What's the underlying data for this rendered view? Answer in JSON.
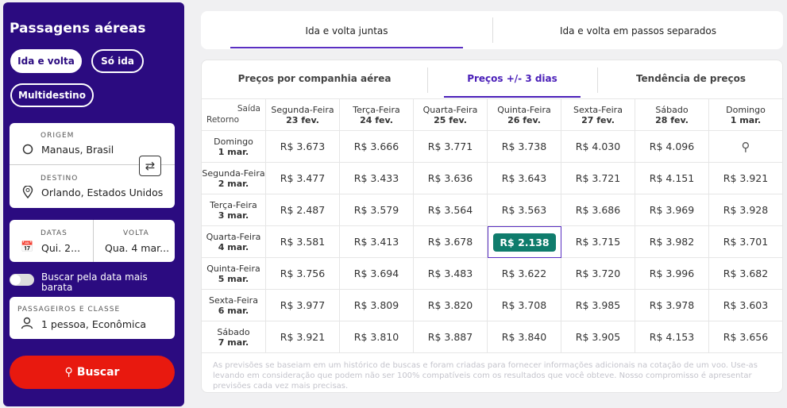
{
  "sidebar": {
    "title": "Passagens aéreas",
    "trip_types": [
      "Ida e volta",
      "Só ida",
      "Multidestino"
    ],
    "origin_label": "ORIGEM",
    "origin": "Manaus, Brasil",
    "destination_label": "DESTINO",
    "destination": "Orlando, Estados Unidos",
    "dates_label": "DATAS",
    "dates": "Qui. 2...",
    "return_label": "VOLTA",
    "return": "Qua. 4 mar...",
    "cheapest_toggle": "Buscar pela data mais barata",
    "passengers_label": "PASSAGEIROS E CLASSE",
    "passengers": "1 pessoa, Econômica",
    "search_button": "Buscar"
  },
  "top_tabs": [
    "Ida e volta juntas",
    "Ida e volta em passos separados"
  ],
  "sub_tabs": [
    "Preços por companhia aérea",
    "Preços +/- 3 dias",
    "Tendência de preços"
  ],
  "table": {
    "corner_top": "Saída",
    "corner_bottom": "Retorno",
    "columns": [
      {
        "day": "Segunda-Feira",
        "date": "23 fev."
      },
      {
        "day": "Terça-Feira",
        "date": "24 fev."
      },
      {
        "day": "Quarta-Feira",
        "date": "25 fev."
      },
      {
        "day": "Quinta-Feira",
        "date": "26 fev."
      },
      {
        "day": "Sexta-Feira",
        "date": "27 fev."
      },
      {
        "day": "Sábado",
        "date": "28 fev."
      },
      {
        "day": "Domingo",
        "date": "1 mar."
      }
    ],
    "rows": [
      {
        "day": "Domingo",
        "date": "1 mar.",
        "prices": [
          "R$ 3.673",
          "R$ 3.666",
          "R$ 3.771",
          "R$ 3.738",
          "R$ 4.030",
          "R$ 4.096",
          null
        ]
      },
      {
        "day": "Segunda-Feira",
        "date": "2 mar.",
        "prices": [
          "R$ 3.477",
          "R$ 3.433",
          "R$ 3.636",
          "R$ 3.643",
          "R$ 3.721",
          "R$ 4.151",
          "R$ 3.921"
        ]
      },
      {
        "day": "Terça-Feira",
        "date": "3 mar.",
        "prices": [
          "R$ 2.487",
          "R$ 3.579",
          "R$ 3.564",
          "R$ 3.563",
          "R$ 3.686",
          "R$ 3.969",
          "R$ 3.928"
        ]
      },
      {
        "day": "Quarta-Feira",
        "date": "4 mar.",
        "prices": [
          "R$ 3.581",
          "R$ 3.413",
          "R$ 3.678",
          "R$ 2.138",
          "R$ 3.715",
          "R$ 3.982",
          "R$ 3.701"
        ]
      },
      {
        "day": "Quinta-Feira",
        "date": "5 mar.",
        "prices": [
          "R$ 3.756",
          "R$ 3.694",
          "R$ 3.483",
          "R$ 3.622",
          "R$ 3.720",
          "R$ 3.996",
          "R$ 3.682"
        ]
      },
      {
        "day": "Sexta-Feira",
        "date": "6 mar.",
        "prices": [
          "R$ 3.977",
          "R$ 3.809",
          "R$ 3.820",
          "R$ 3.708",
          "R$ 3.985",
          "R$ 3.978",
          "R$ 3.603"
        ]
      },
      {
        "day": "Sábado",
        "date": "7 mar.",
        "prices": [
          "R$ 3.921",
          "R$ 3.810",
          "R$ 3.887",
          "R$ 3.840",
          "R$ 3.905",
          "R$ 4.153",
          "R$ 3.656"
        ]
      }
    ],
    "selected_cell": [
      3,
      3
    ]
  },
  "footnote": "As previsões se baseiam em um histórico de buscas e foram criadas para fornecer informações adicionais na cotação de um voo. Use-as levando em consideração que podem não ser 100% compatíveis com os resultados que você obteve. Nosso compromisso é apresentar previsões cada vez mais precisas."
}
